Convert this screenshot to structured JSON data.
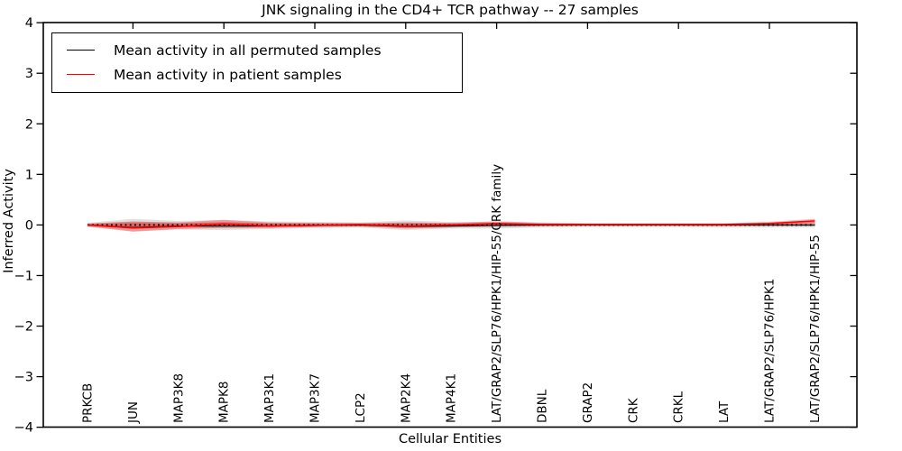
{
  "chart_data": {
    "type": "line",
    "title": "JNK signaling in the CD4+ TCR pathway -- 27 samples",
    "xlabel": "Cellular Entities",
    "ylabel": "Inferred Activity",
    "ylim": [
      -4,
      4
    ],
    "ytick_values": [
      4,
      3,
      2,
      1,
      0,
      -1,
      -2,
      -3,
      -4
    ],
    "ytick_labels": [
      "4",
      "3",
      "2",
      "1",
      "0",
      "−1",
      "−2",
      "−3",
      "−4"
    ],
    "grid": false,
    "legend_position": "upper left",
    "categories": [
      "PRKCB",
      "JUN",
      "MAP3K8",
      "MAPK8",
      "MAP3K1",
      "MAP3K7",
      "LCP2",
      "MAP2K4",
      "MAP4K1",
      "LAT/GRAP2/SLP76/HPK1/HIP-55/CRK family",
      "DBNL",
      "GRAP2",
      "CRK",
      "CRKL",
      "LAT",
      "LAT/GRAP2/SLP76/HPK1",
      "LAT/GRAP2/SLP76/HPK1/HIP-55"
    ],
    "legend": [
      {
        "label": "Mean activity in all permuted samples",
        "color": "#000000"
      },
      {
        "label": "Mean activity in patient samples",
        "color": "#ff0000"
      }
    ],
    "series": [
      {
        "name": "Mean activity in all permuted samples",
        "color": "#000000",
        "values": [
          0.0,
          -0.05,
          -0.02,
          -0.02,
          -0.02,
          -0.01,
          0.0,
          -0.03,
          -0.02,
          -0.01,
          0.0,
          0.0,
          0.0,
          0.0,
          0.0,
          0.0,
          0.0
        ]
      },
      {
        "name": "Mean activity in patient samples",
        "color": "#ff0000",
        "values": [
          0.0,
          -0.06,
          -0.03,
          0.02,
          -0.02,
          -0.01,
          0.01,
          -0.02,
          0.0,
          0.03,
          0.01,
          0.01,
          0.01,
          0.01,
          0.01,
          0.03,
          0.08
        ]
      }
    ],
    "bands": [
      {
        "name": "permuted-samples-spread",
        "color": "rgba(0,0,0,0.12)",
        "upper": [
          0.04,
          0.12,
          0.08,
          0.1,
          0.07,
          0.06,
          0.05,
          0.09,
          0.06,
          0.07,
          0.05,
          0.04,
          0.04,
          0.04,
          0.04,
          0.04,
          0.05
        ],
        "lower": [
          -0.04,
          -0.13,
          -0.09,
          -0.1,
          -0.08,
          -0.06,
          -0.05,
          -0.1,
          -0.07,
          -0.07,
          -0.05,
          -0.04,
          -0.04,
          -0.04,
          -0.05,
          -0.05,
          -0.05
        ]
      },
      {
        "name": "patient-samples-spread",
        "color": "rgba(255,0,0,0.30)",
        "upper": [
          0.03,
          0.07,
          0.05,
          0.1,
          0.05,
          0.04,
          0.04,
          0.05,
          0.04,
          0.07,
          0.04,
          0.03,
          0.03,
          0.03,
          0.03,
          0.06,
          0.12
        ],
        "lower": [
          -0.03,
          -0.13,
          -0.08,
          -0.06,
          -0.06,
          -0.04,
          -0.03,
          -0.07,
          -0.05,
          -0.02,
          -0.02,
          -0.01,
          -0.01,
          -0.01,
          -0.01,
          0.0,
          0.04
        ]
      }
    ],
    "zero_line": {
      "style": "dotted",
      "color": "#000000",
      "value": 0
    }
  }
}
